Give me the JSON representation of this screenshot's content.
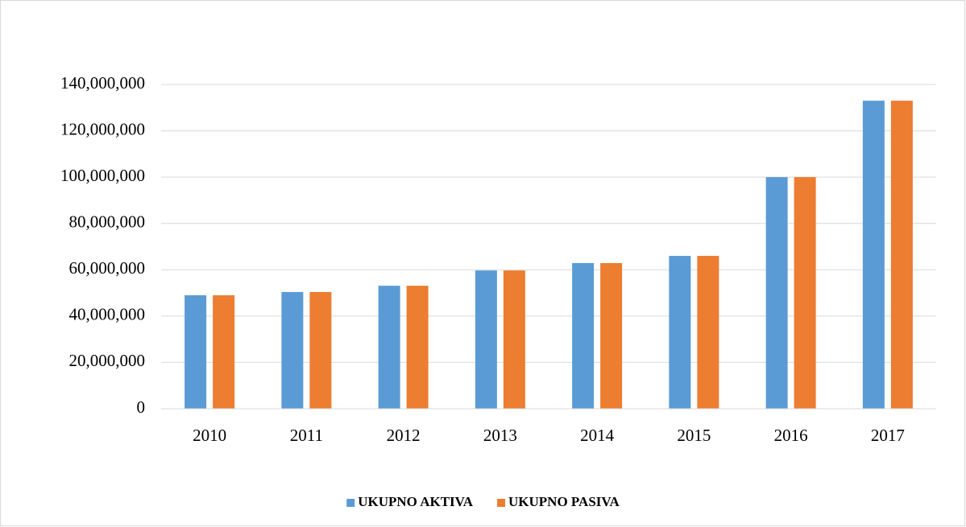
{
  "chart_data": {
    "type": "bar",
    "categories": [
      "2010",
      "2011",
      "2012",
      "2013",
      "2014",
      "2015",
      "2016",
      "2017"
    ],
    "series": [
      {
        "name": "UKUPNO AKTIVA",
        "color": "#5b9bd5",
        "values": [
          49000000,
          50400000,
          53100000,
          59700000,
          62900000,
          66000000,
          100000000,
          133000000
        ]
      },
      {
        "name": "UKUPNO PASIVA",
        "color": "#ed7d31",
        "values": [
          49000000,
          50400000,
          53100000,
          59700000,
          62900000,
          66000000,
          100000000,
          133000000
        ]
      }
    ],
    "ylim": [
      0,
      140000000
    ],
    "yticks": [
      0,
      {
        "value": 20000000,
        "label": "20,000,000"
      },
      {
        "value": 40000000,
        "label": "40,000,000"
      },
      {
        "value": 60000000,
        "label": "60,000,000"
      },
      {
        "value": 80000000,
        "label": "80,000,000"
      },
      {
        "value": 100000000,
        "label": "100,000,000"
      },
      {
        "value": 120000000,
        "label": "120,000,000"
      },
      {
        "value": 140000000,
        "label": "140,000,000"
      }
    ],
    "grid": true,
    "legend": "bottom"
  }
}
